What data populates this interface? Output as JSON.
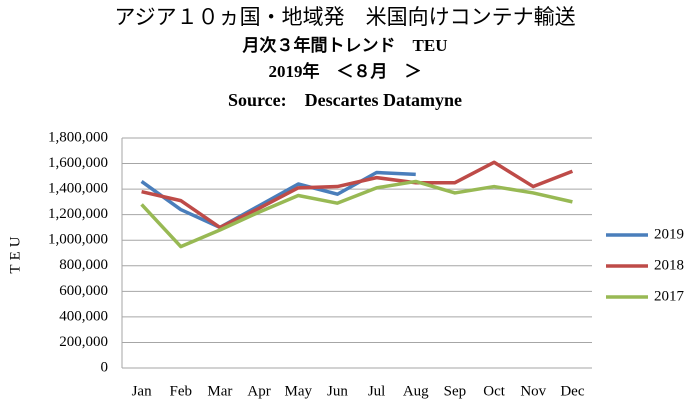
{
  "chart_data": {
    "type": "line",
    "title": "アジア１０ヵ国・地域発　米国向けコンテナ輸送",
    "subtitles": [
      "月次３年間トレンド　TEU",
      "2019年　＜８月　＞",
      "Source:　Descartes Datamyne"
    ],
    "ylabel": "TEU",
    "categories": [
      "Jan",
      "Feb",
      "Mar",
      "Apr",
      "May",
      "Jun",
      "Jul",
      "Aug",
      "Sep",
      "Oct",
      "Nov",
      "Dec"
    ],
    "series": [
      {
        "name": "2019",
        "color": "#4a7ebb",
        "values": [
          1460000,
          1240000,
          1100000,
          1270000,
          1440000,
          1360000,
          1530000,
          1515000,
          null,
          null,
          null,
          null
        ]
      },
      {
        "name": "2018",
        "color": "#be4b48",
        "values": [
          1380000,
          1310000,
          1100000,
          1250000,
          1410000,
          1420000,
          1490000,
          1450000,
          1450000,
          1610000,
          1420000,
          1540000
        ]
      },
      {
        "name": "2017",
        "color": "#98b954",
        "values": [
          1280000,
          950000,
          1080000,
          1220000,
          1350000,
          1290000,
          1410000,
          1460000,
          1370000,
          1420000,
          1370000,
          1300000
        ]
      }
    ],
    "ylim": [
      0,
      1800000
    ],
    "yticks": [
      0,
      {
        "value": 200000,
        "label": "200,000"
      },
      {
        "value": 400000,
        "label": "400,000"
      },
      {
        "value": 600000,
        "label": "600,000"
      },
      {
        "value": 800000,
        "label": "800,000"
      },
      {
        "value": 1000000,
        "label": "1,000,000"
      },
      {
        "value": 1200000,
        "label": "1,200,000"
      },
      {
        "value": 1400000,
        "label": "1,400,000"
      },
      {
        "value": 1600000,
        "label": "1,600,000"
      },
      {
        "value": 1800000,
        "label": "1,800,000"
      }
    ],
    "grid": true,
    "legend": "right"
  }
}
